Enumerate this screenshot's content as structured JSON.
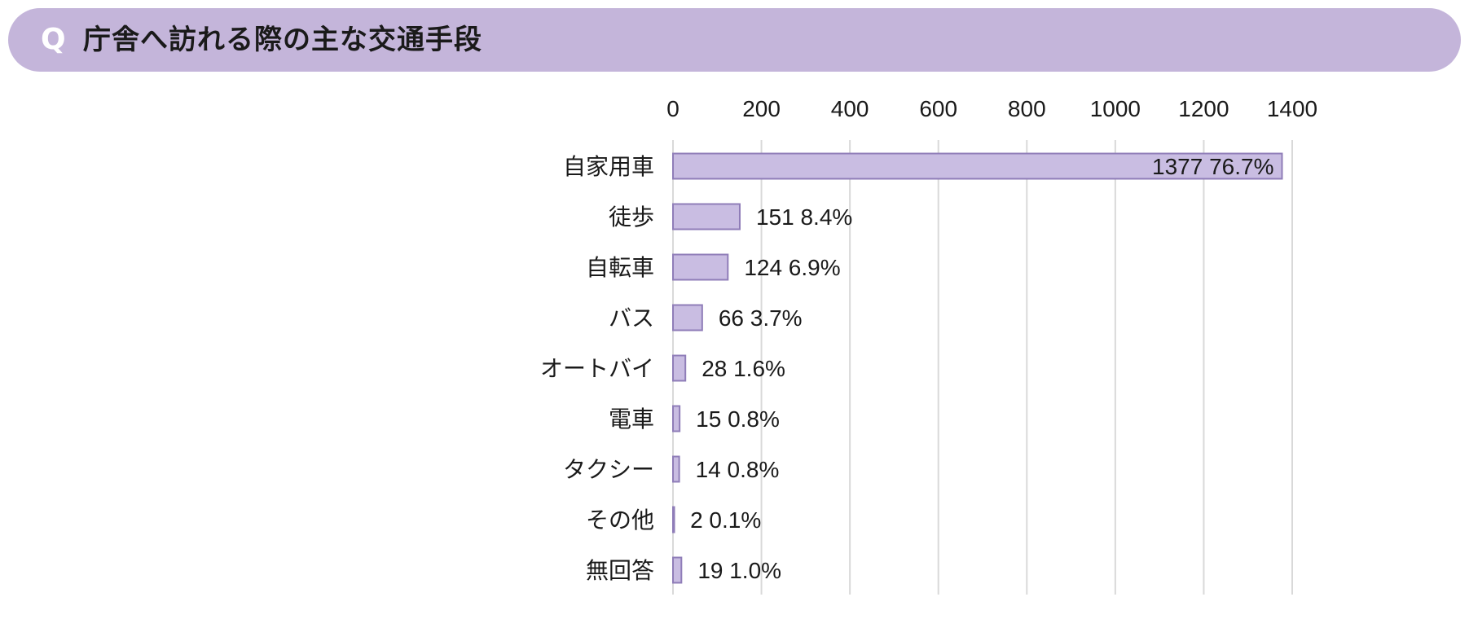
{
  "header": {
    "q_mark": "Q",
    "title": "庁舎へ訪れる際の主な交通手段"
  },
  "colors": {
    "header_bg": "#c4b5da",
    "bar_fill": "#c9bde2",
    "bar_stroke": "#8f7db8",
    "grid": "#d9d9d9"
  },
  "chart_data": {
    "type": "bar",
    "orientation": "horizontal",
    "title": "庁舎へ訪れる際の主な交通手段",
    "categories": [
      "自家用車",
      "徒歩",
      "自転車",
      "バス",
      "オートバイ",
      "電車",
      "タクシー",
      "その他",
      "無回答"
    ],
    "values": [
      1377,
      151,
      124,
      66,
      28,
      15,
      14,
      2,
      19
    ],
    "percent_labels": [
      "76.7%",
      "8.4%",
      "6.9%",
      "3.7%",
      "1.6%",
      "0.8%",
      "0.8%",
      "0.1%",
      "1.0%"
    ],
    "xlim": [
      0,
      1400
    ],
    "x_ticks": [
      0,
      200,
      400,
      600,
      800,
      1000,
      1200,
      1400
    ],
    "x_tick_labels": [
      "0",
      "200",
      "400",
      "600",
      "800",
      "1000",
      "1200",
      "1400"
    ],
    "axis_position": "top",
    "grid": true,
    "xlabel": "",
    "ylabel": ""
  }
}
